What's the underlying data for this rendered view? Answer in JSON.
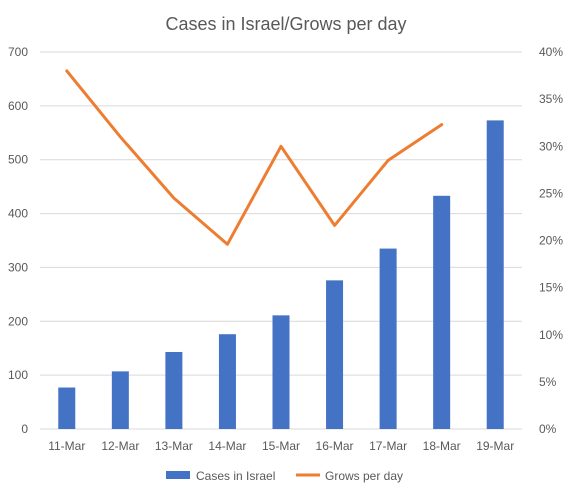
{
  "chart_data": {
    "type": "bar",
    "title": "Cases in Israel/Grows per day",
    "categories": [
      "11-Mar",
      "12-Mar",
      "13-Mar",
      "14-Mar",
      "15-Mar",
      "16-Mar",
      "17-Mar",
      "18-Mar",
      "19-Mar"
    ],
    "series": [
      {
        "name": "Cases in Israel",
        "type": "bar",
        "axis": "left",
        "color": "#4472C4",
        "values": [
          77,
          107,
          143,
          176,
          211,
          276,
          335,
          433,
          573
        ]
      },
      {
        "name": "Grows per day",
        "type": "line",
        "axis": "right",
        "color": "#ED7D31",
        "values": [
          0.38,
          0.31,
          0.245,
          0.196,
          0.3,
          0.216,
          0.285,
          0.323,
          null
        ]
      }
    ],
    "y_left": {
      "min": 0,
      "max": 700,
      "step": 100,
      "ticks": [
        "0",
        "100",
        "200",
        "300",
        "400",
        "500",
        "600",
        "700"
      ]
    },
    "y_right": {
      "min": 0,
      "max": 0.4,
      "step": 0.05,
      "ticks": [
        "0%",
        "5%",
        "10%",
        "15%",
        "20%",
        "25%",
        "30%",
        "35%",
        "40%"
      ]
    },
    "grid": true,
    "legend": "bottom",
    "colors": {
      "gridline": "#D9D9D9",
      "text": "#595959"
    }
  }
}
